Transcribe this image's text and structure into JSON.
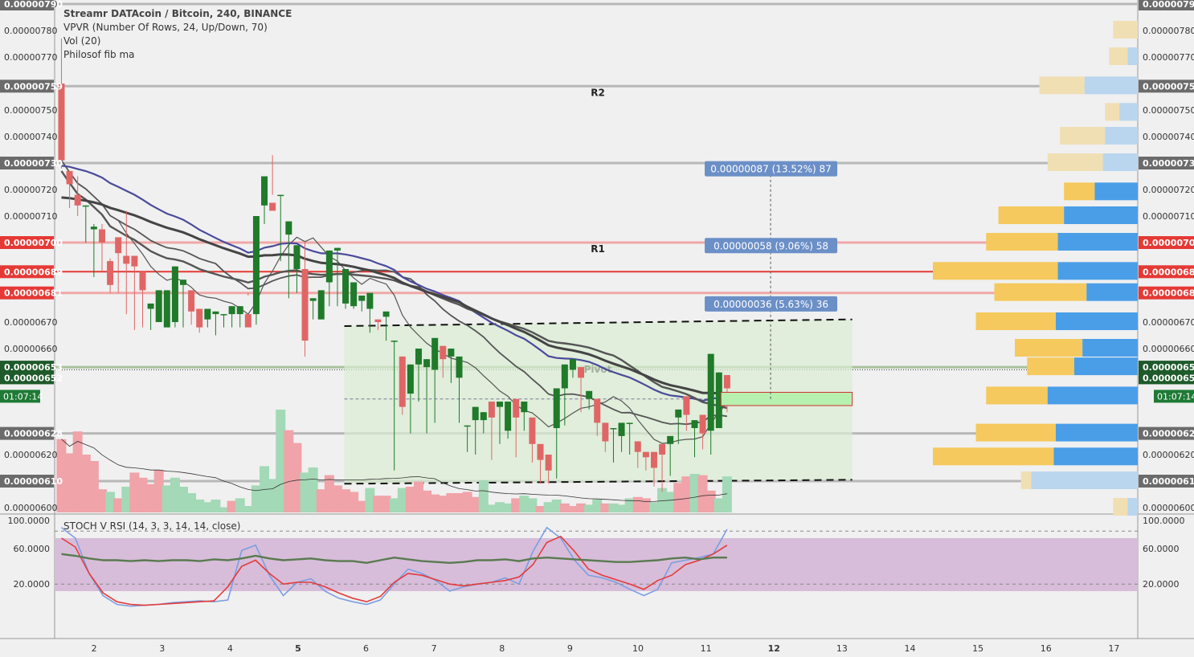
{
  "header": {
    "title": "Streamr DATAcoin / Bitcoin, 240, BINANCE",
    "indicators": [
      "VPVR (Number Of Rows, 24, Up/Down, 70)",
      "Vol (20)",
      "Philosof fib ma"
    ]
  },
  "stoch_panel": {
    "label": "STOCH V RSI (14, 3, 3, 14, 14, close)",
    "ticks": [
      "100.0000",
      "60.0000",
      "20.0000"
    ]
  },
  "chart_data": {
    "type": "candlestick",
    "price_axis": {
      "ticks": [
        "0.00000790",
        "0.00000780",
        "0.00000770",
        "0.00000750",
        "0.00000740",
        "0.00000720",
        "0.00000710",
        "0.00000670",
        "0.00000660",
        "0.00000620",
        "0.00000600"
      ],
      "highlight_labels": [
        {
          "text": "0.00000790",
          "value": 790,
          "kind": "gray"
        },
        {
          "text": "0.00000759",
          "value": 759,
          "kind": "gray"
        },
        {
          "text": "0.00000730",
          "value": 730,
          "kind": "gray"
        },
        {
          "text": "0.00000700",
          "value": 700,
          "kind": "red"
        },
        {
          "text": "0.00000689",
          "value": 689,
          "kind": "red"
        },
        {
          "text": "0.00000681",
          "value": 681,
          "kind": "red"
        },
        {
          "text": "0.00000653",
          "value": 653,
          "kind": "dark"
        },
        {
          "text": "0.00000652",
          "value": 652,
          "kind": "dark"
        },
        {
          "text": "0.00000628",
          "value": 628,
          "kind": "gray"
        },
        {
          "text": "0.00000610",
          "value": 610,
          "kind": "gray"
        }
      ],
      "countdown": "01:07:14",
      "ylim": [
        590,
        792
      ]
    },
    "x_axis": {
      "labels": [
        {
          "text": "2",
          "x": 2
        },
        {
          "text": "3",
          "x": 3
        },
        {
          "text": "4",
          "x": 4
        },
        {
          "text": "5",
          "x": 5,
          "bold": true
        },
        {
          "text": "6",
          "x": 6
        },
        {
          "text": "7",
          "x": 7
        },
        {
          "text": "8",
          "x": 8
        },
        {
          "text": "9",
          "x": 9
        },
        {
          "text": "10",
          "x": 10
        },
        {
          "text": "11",
          "x": 11
        },
        {
          "text": "12",
          "x": 12,
          "bold": true
        },
        {
          "text": "13",
          "x": 13
        },
        {
          "text": "14",
          "x": 14
        },
        {
          "text": "15",
          "x": 15
        },
        {
          "text": "16",
          "x": 16
        },
        {
          "text": "17",
          "x": 17
        }
      ],
      "xlim": [
        1.42,
        17.35
      ]
    },
    "levels": [
      {
        "label": "R2",
        "value": 759
      },
      {
        "label": "R1",
        "value": 700
      },
      {
        "label": "Pivot",
        "value": 653
      }
    ],
    "projections": [
      {
        "text": "0.00000087 (13.52%) 87",
        "target": 728
      },
      {
        "text": "0.00000058 (9.06%) 58",
        "target": 699
      },
      {
        "text": "0.00000036 (5.63%) 36",
        "target": 677
      }
    ],
    "channel": {
      "x_start": 5.68,
      "x_end": 13.15,
      "top": [
        668.5,
        671
      ],
      "bottom": [
        609,
        610.5
      ]
    },
    "candles": [
      [
        760,
        777,
        731,
        728
      ],
      [
        727,
        721,
        722,
        713
      ],
      [
        718,
        725,
        714,
        710
      ],
      [
        714,
        711,
        714,
        700
      ],
      [
        705,
        707,
        706,
        687
      ],
      [
        705,
        707,
        700,
        689
      ],
      [
        693,
        694,
        684,
        681
      ],
      [
        702,
        702,
        696,
        681
      ],
      [
        695,
        712,
        692,
        673
      ],
      [
        695,
        690,
        691,
        667
      ],
      [
        689,
        689,
        682,
        668
      ],
      [
        675,
        675,
        677,
        667
      ],
      [
        670,
        670,
        682,
        677
      ],
      [
        668,
        671,
        682,
        678
      ],
      [
        670,
        658,
        691,
        668
      ],
      [
        684,
        684,
        686,
        668
      ],
      [
        682,
        682,
        674,
        669
      ],
      [
        675,
        675,
        668,
        666
      ],
      [
        671,
        671,
        675,
        668
      ],
      [
        673,
        673,
        674,
        665
      ],
      [
        673,
        673,
        673,
        668
      ],
      [
        673,
        673,
        676,
        668
      ],
      [
        673,
        673,
        676,
        668
      ],
      [
        673,
        680,
        668,
        681
      ],
      [
        673,
        705,
        710,
        669
      ],
      [
        714,
        714,
        725,
        707
      ],
      [
        715,
        733,
        712,
        718
      ],
      [
        718,
        718,
        718,
        693
      ],
      [
        703,
        703,
        708,
        679
      ],
      [
        690,
        690,
        699,
        681
      ],
      [
        690,
        700,
        663,
        657
      ],
      [
        678,
        678,
        679,
        671
      ],
      [
        671,
        671,
        682,
        672
      ],
      [
        685,
        697,
        697,
        676
      ],
      [
        697,
        697,
        698,
        676
      ],
      [
        677,
        679,
        690,
        675
      ],
      [
        676,
        676,
        685,
        675
      ],
      [
        678,
        678,
        680,
        674
      ],
      [
        675,
        675,
        681,
        666
      ],
      [
        671,
        671,
        670,
        667
      ],
      [
        672,
        672,
        674,
        663
      ],
      [
        663,
        663,
        663,
        614
      ],
      [
        657,
        657,
        638,
        635
      ],
      [
        643,
        643,
        654,
        628
      ],
      [
        654,
        654,
        660,
        640
      ],
      [
        653,
        653,
        656,
        628
      ],
      [
        652,
        652,
        664,
        632
      ],
      [
        661,
        661,
        656,
        649
      ],
      [
        657,
        657,
        660,
        647
      ],
      [
        649,
        649,
        657,
        632
      ],
      [
        631,
        631,
        631,
        621
      ],
      [
        633,
        633,
        638,
        620
      ],
      [
        633,
        633,
        636,
        628
      ],
      [
        640,
        640,
        634,
        618
      ],
      [
        638,
        638,
        640,
        624
      ],
      [
        629,
        629,
        640,
        626
      ],
      [
        641,
        641,
        634,
        619
      ],
      [
        636,
        636,
        640,
        629
      ],
      [
        634,
        634,
        624,
        617
      ],
      [
        624,
        624,
        618,
        609
      ],
      [
        620,
        620,
        614,
        609
      ],
      [
        630,
        630,
        645,
        611
      ],
      [
        645,
        645,
        654,
        631
      ],
      [
        652,
        652,
        656,
        649
      ],
      [
        653,
        653,
        649,
        636
      ],
      [
        641,
        641,
        644,
        637
      ],
      [
        641,
        641,
        632,
        627
      ],
      [
        632,
        632,
        625,
        621
      ],
      [
        630,
        630,
        630,
        617
      ],
      [
        627,
        627,
        632,
        621
      ],
      [
        632,
        632,
        632,
        620
      ],
      [
        625,
        625,
        621,
        615
      ],
      [
        621,
        621,
        619,
        614
      ],
      [
        621,
        621,
        615,
        608
      ],
      [
        624,
        624,
        620,
        606
      ],
      [
        624,
        624,
        627,
        612
      ],
      [
        634,
        634,
        637,
        624
      ],
      [
        642,
        642,
        635,
        629
      ],
      [
        630,
        630,
        633,
        619
      ],
      [
        635,
        635,
        628,
        622
      ],
      [
        629,
        629,
        658,
        620
      ],
      [
        630,
        630,
        651,
        630
      ],
      [
        650,
        650,
        645,
        636
      ]
    ],
    "volumes": [
      [
        0.57,
        0
      ],
      [
        0.46,
        0
      ],
      [
        0.63,
        0
      ],
      [
        0.45,
        0
      ],
      [
        0.4,
        0
      ],
      [
        0.18,
        0
      ],
      [
        0.16,
        1
      ],
      [
        0.11,
        0
      ],
      [
        0.2,
        1
      ],
      [
        0.31,
        0
      ],
      [
        0.27,
        0
      ],
      [
        0.22,
        0
      ],
      [
        0.33,
        0
      ],
      [
        0.21,
        1
      ],
      [
        0.27,
        1
      ],
      [
        0.2,
        1
      ],
      [
        0.15,
        1
      ],
      [
        0.1,
        1
      ],
      [
        0.08,
        1
      ],
      [
        0.1,
        1
      ],
      [
        0.04,
        1
      ],
      [
        0.09,
        0
      ],
      [
        0.11,
        1
      ],
      [
        0.05,
        1
      ],
      [
        0.21,
        1
      ],
      [
        0.36,
        1
      ],
      [
        0.26,
        1
      ],
      [
        0.8,
        1
      ],
      [
        0.64,
        0
      ],
      [
        0.54,
        0
      ],
      [
        0.31,
        1
      ],
      [
        0.35,
        1
      ],
      [
        0.18,
        0
      ],
      [
        0.29,
        0
      ],
      [
        0.21,
        0
      ],
      [
        0.18,
        0
      ],
      [
        0.16,
        0
      ],
      [
        0.09,
        0
      ],
      [
        0.19,
        1
      ],
      [
        0.13,
        0
      ],
      [
        0.13,
        0
      ],
      [
        0.11,
        1
      ],
      [
        0.19,
        1
      ],
      [
        0.2,
        0
      ],
      [
        0.24,
        0
      ],
      [
        0.17,
        0
      ],
      [
        0.14,
        0
      ],
      [
        0.13,
        0
      ],
      [
        0.15,
        0
      ],
      [
        0.15,
        0
      ],
      [
        0.16,
        0
      ],
      [
        0.12,
        0
      ],
      [
        0.25,
        1
      ],
      [
        0.06,
        1
      ],
      [
        0.08,
        1
      ],
      [
        0.07,
        1
      ],
      [
        0.11,
        0
      ],
      [
        0.13,
        1
      ],
      [
        0.11,
        1
      ],
      [
        0.05,
        0
      ],
      [
        0.08,
        1
      ],
      [
        0.1,
        1
      ],
      [
        0.07,
        0
      ],
      [
        0.05,
        0
      ],
      [
        0.07,
        0
      ],
      [
        0.06,
        1
      ],
      [
        0.1,
        1
      ],
      [
        0.07,
        0
      ],
      [
        0.07,
        1
      ],
      [
        0.06,
        1
      ],
      [
        0.11,
        1
      ],
      [
        0.12,
        0
      ],
      [
        0.11,
        0
      ],
      [
        0.08,
        1
      ],
      [
        0.19,
        1
      ],
      [
        0.16,
        1
      ],
      [
        0.23,
        0
      ],
      [
        0.28,
        0
      ],
      [
        0.3,
        1
      ],
      [
        0.29,
        0
      ],
      [
        0.17,
        0
      ],
      [
        0.11,
        1
      ],
      [
        0.28,
        1
      ]
    ],
    "vpvr": {
      "rows": [
        [
          780,
          0.12,
          0.0
        ],
        [
          770,
          0.14,
          0.05
        ],
        [
          759,
          0.48,
          0.26
        ],
        [
          749,
          0.16,
          0.09
        ],
        [
          740,
          0.38,
          0.16
        ],
        [
          730,
          0.44,
          0.17
        ],
        [
          719,
          0.36,
          0.21
        ],
        [
          710,
          0.68,
          0.36
        ],
        [
          700,
          0.74,
          0.39
        ],
        [
          689,
          1.0,
          0.39
        ],
        [
          681,
          0.7,
          0.25
        ],
        [
          670,
          0.79,
          0.4
        ],
        [
          660,
          0.6,
          0.27
        ],
        [
          653,
          0.54,
          0.31
        ],
        [
          642,
          0.74,
          0.44
        ],
        [
          628,
          0.79,
          0.4
        ],
        [
          619,
          1.0,
          0.41
        ],
        [
          610,
          0.57,
          0.52
        ],
        [
          600,
          0.12,
          0.05
        ]
      ]
    },
    "value_area_band": {
      "from": 613,
      "to": 720
    }
  }
}
